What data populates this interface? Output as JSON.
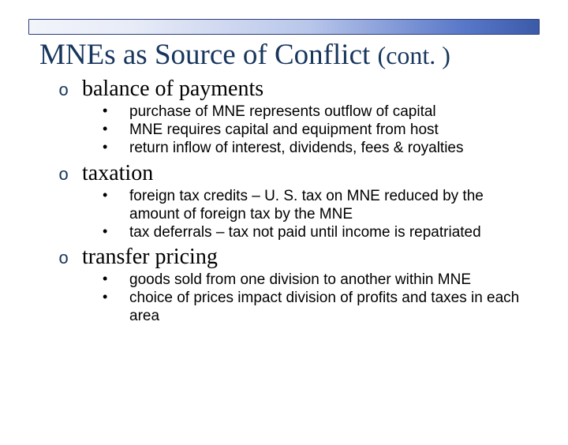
{
  "colors": {
    "title_color": "#17365d",
    "text_color": "#000000",
    "background": "#ffffff",
    "bar_gradient_start": "#f2f4fa",
    "bar_gradient_end": "#3b5aa8",
    "bar_border": "#2b3e78"
  },
  "typography": {
    "title_font": "Times New Roman",
    "body_font": "Arial",
    "title_fontsize": 37,
    "cont_fontsize": 32,
    "section_title_fontsize": 28,
    "bullet_fontsize": 19
  },
  "title": {
    "main": "MNEs as Source of Conflict",
    "cont": "(cont. )"
  },
  "sections": [
    {
      "marker": "o",
      "title": "balance of payments",
      "bullets": [
        "purchase of MNE represents outflow of capital",
        "MNE requires capital and equipment from host",
        "return inflow of interest, dividends, fees & royalties"
      ]
    },
    {
      "marker": "o",
      "title": "taxation",
      "bullets": [
        "foreign tax credits – U. S. tax on MNE reduced by the amount of foreign tax by the MNE",
        "tax deferrals – tax not paid until income is repatriated"
      ]
    },
    {
      "marker": "o",
      "title": "transfer pricing",
      "bullets": [
        "goods sold from one division to another within MNE",
        "choice of prices impact division of profits and taxes in each area"
      ]
    }
  ]
}
